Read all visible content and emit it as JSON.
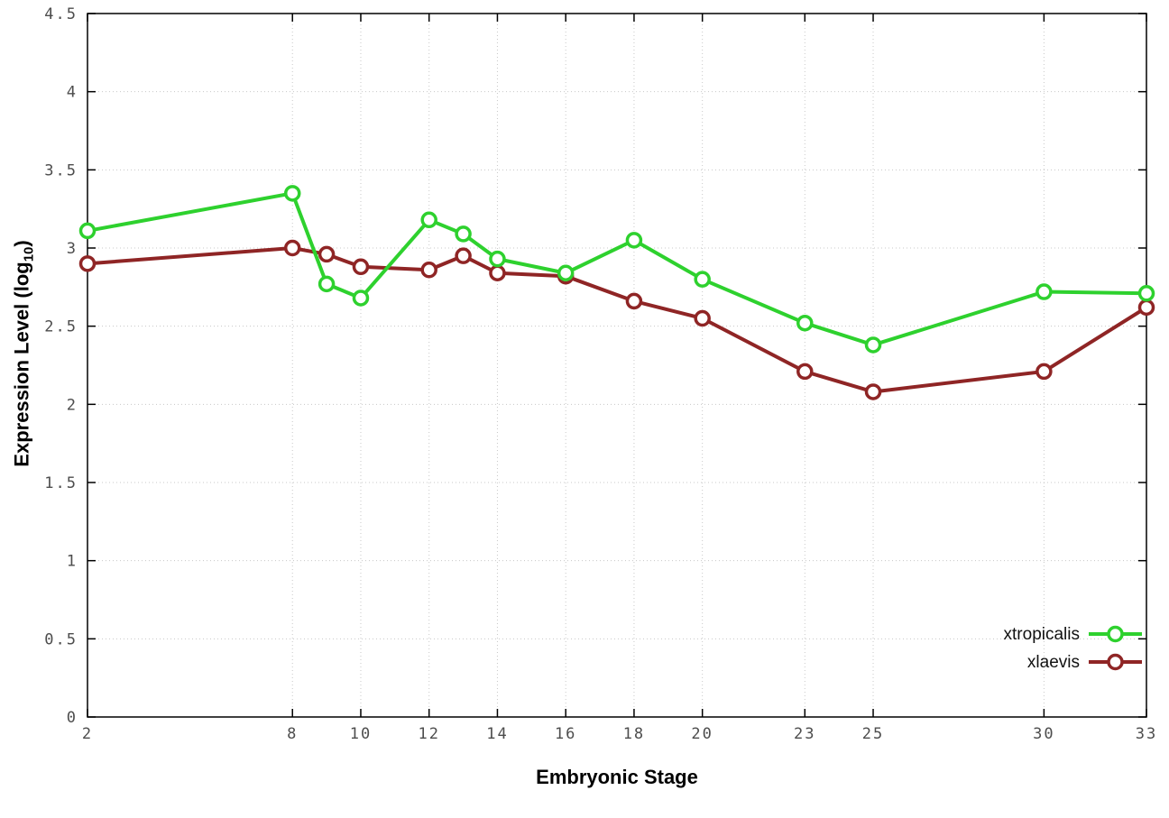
{
  "labels": {
    "xlabel": "Embryonic Stage",
    "ylabel_pre": "Expression Level (log",
    "ylabel_sub": "10",
    "ylabel_post": ")"
  },
  "chart_data": {
    "type": "line",
    "title": "",
    "xlabel": "Embryonic Stage",
    "ylabel": "Expression Level (log10)",
    "x": [
      2,
      8,
      9,
      10,
      12,
      13,
      14,
      16,
      18,
      20,
      23,
      25,
      30,
      33
    ],
    "series": [
      {
        "name": "xtropicalis",
        "color": "#2ed12e",
        "values": [
          3.11,
          3.35,
          2.77,
          2.68,
          3.18,
          3.09,
          2.93,
          2.84,
          3.05,
          2.8,
          2.52,
          2.38,
          2.72,
          2.71
        ]
      },
      {
        "name": "xlaevis",
        "color": "#8f2525",
        "values": [
          2.9,
          3.0,
          2.96,
          2.88,
          2.86,
          2.95,
          2.84,
          2.82,
          2.66,
          2.55,
          2.21,
          2.08,
          2.21,
          2.62
        ]
      }
    ],
    "xticks": [
      2,
      8,
      10,
      12,
      14,
      16,
      18,
      20,
      23,
      25,
      30,
      33
    ],
    "yticks": [
      0,
      0.5,
      1,
      1.5,
      2,
      2.5,
      3,
      3.5,
      4,
      4.5
    ],
    "xlim": [
      2,
      33
    ],
    "ylim": [
      0,
      4.5
    ],
    "grid": true,
    "legend_position": "bottom-right",
    "colors": {
      "grid": "#c8c8c8",
      "border": "#000000",
      "tick_label": "#4d4d4d",
      "legend_text": "#111111",
      "marker_fill": "#ffffff"
    }
  }
}
